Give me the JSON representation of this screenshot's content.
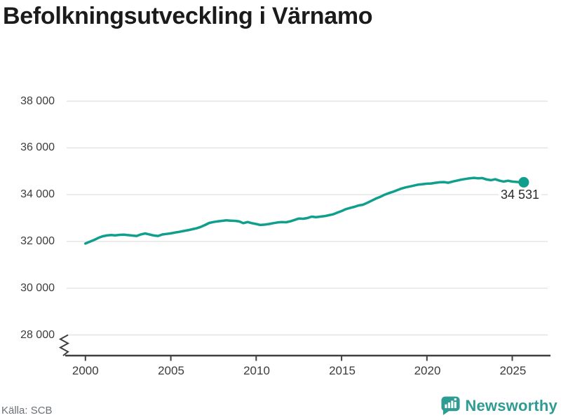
{
  "title": "Befolkningsutveckling i Värnamo",
  "source": "Källa: SCB",
  "brand": {
    "name": "Newsworthy",
    "color": "#2E9C93"
  },
  "chart_data": {
    "type": "line",
    "title": "Befolkningsutveckling i Värnamo",
    "xlabel": "",
    "ylabel": "",
    "ylim": [
      28000,
      38000
    ],
    "xlim": [
      2000,
      2025.67
    ],
    "axis_break": true,
    "grid": "horizontal",
    "line_color": "#109E8D",
    "grid_color": "#e3e3e3",
    "axis_color": "#3f3f3f",
    "end_label": "34 531",
    "end_value": 34531,
    "x_ticks": [
      2000,
      2005,
      2010,
      2015,
      2020,
      2025
    ],
    "y_ticks": [
      {
        "value": 38000,
        "label": "38 000"
      },
      {
        "value": 36000,
        "label": "36 000"
      },
      {
        "value": 34000,
        "label": "34 000"
      },
      {
        "value": 32000,
        "label": "32 000"
      },
      {
        "value": 30000,
        "label": "30 000"
      },
      {
        "value": 28000,
        "label": "28 000"
      }
    ],
    "series": [
      {
        "name": "Befolkning",
        "points": [
          [
            2000.0,
            31910
          ],
          [
            2000.25,
            31985
          ],
          [
            2000.5,
            32060
          ],
          [
            2000.75,
            32150
          ],
          [
            2001.0,
            32220
          ],
          [
            2001.25,
            32255
          ],
          [
            2001.5,
            32275
          ],
          [
            2001.75,
            32260
          ],
          [
            2002.0,
            32280
          ],
          [
            2002.25,
            32290
          ],
          [
            2002.5,
            32270
          ],
          [
            2002.75,
            32250
          ],
          [
            2003.0,
            32235
          ],
          [
            2003.25,
            32300
          ],
          [
            2003.5,
            32340
          ],
          [
            2003.75,
            32300
          ],
          [
            2004.0,
            32255
          ],
          [
            2004.25,
            32235
          ],
          [
            2004.5,
            32295
          ],
          [
            2004.75,
            32320
          ],
          [
            2005.0,
            32345
          ],
          [
            2005.25,
            32380
          ],
          [
            2005.5,
            32410
          ],
          [
            2005.75,
            32445
          ],
          [
            2006.0,
            32480
          ],
          [
            2006.25,
            32520
          ],
          [
            2006.5,
            32560
          ],
          [
            2006.75,
            32620
          ],
          [
            2007.0,
            32700
          ],
          [
            2007.25,
            32790
          ],
          [
            2007.5,
            32830
          ],
          [
            2007.75,
            32860
          ],
          [
            2008.0,
            32880
          ],
          [
            2008.25,
            32900
          ],
          [
            2008.5,
            32890
          ],
          [
            2008.75,
            32880
          ],
          [
            2009.0,
            32860
          ],
          [
            2009.25,
            32780
          ],
          [
            2009.5,
            32830
          ],
          [
            2009.75,
            32780
          ],
          [
            2010.0,
            32745
          ],
          [
            2010.25,
            32705
          ],
          [
            2010.5,
            32720
          ],
          [
            2010.75,
            32745
          ],
          [
            2011.0,
            32780
          ],
          [
            2011.25,
            32810
          ],
          [
            2011.5,
            32830
          ],
          [
            2011.75,
            32820
          ],
          [
            2012.0,
            32860
          ],
          [
            2012.25,
            32920
          ],
          [
            2012.5,
            32980
          ],
          [
            2012.75,
            32970
          ],
          [
            2013.0,
            33000
          ],
          [
            2013.25,
            33060
          ],
          [
            2013.5,
            33040
          ],
          [
            2013.75,
            33060
          ],
          [
            2014.0,
            33080
          ],
          [
            2014.25,
            33120
          ],
          [
            2014.5,
            33160
          ],
          [
            2014.75,
            33230
          ],
          [
            2015.0,
            33300
          ],
          [
            2015.25,
            33380
          ],
          [
            2015.5,
            33430
          ],
          [
            2015.75,
            33480
          ],
          [
            2016.0,
            33540
          ],
          [
            2016.25,
            33570
          ],
          [
            2016.5,
            33650
          ],
          [
            2016.75,
            33740
          ],
          [
            2017.0,
            33830
          ],
          [
            2017.25,
            33900
          ],
          [
            2017.5,
            33990
          ],
          [
            2017.75,
            34060
          ],
          [
            2018.0,
            34120
          ],
          [
            2018.25,
            34190
          ],
          [
            2018.5,
            34260
          ],
          [
            2018.75,
            34310
          ],
          [
            2019.0,
            34350
          ],
          [
            2019.25,
            34390
          ],
          [
            2019.5,
            34430
          ],
          [
            2019.75,
            34450
          ],
          [
            2020.0,
            34470
          ],
          [
            2020.25,
            34480
          ],
          [
            2020.5,
            34510
          ],
          [
            2020.75,
            34530
          ],
          [
            2021.0,
            34540
          ],
          [
            2021.25,
            34510
          ],
          [
            2021.5,
            34560
          ],
          [
            2021.75,
            34600
          ],
          [
            2022.0,
            34640
          ],
          [
            2022.25,
            34670
          ],
          [
            2022.5,
            34700
          ],
          [
            2022.75,
            34720
          ],
          [
            2023.0,
            34700
          ],
          [
            2023.25,
            34710
          ],
          [
            2023.5,
            34650
          ],
          [
            2023.75,
            34620
          ],
          [
            2024.0,
            34660
          ],
          [
            2024.25,
            34600
          ],
          [
            2024.5,
            34560
          ],
          [
            2024.75,
            34595
          ],
          [
            2025.0,
            34560
          ],
          [
            2025.25,
            34545
          ],
          [
            2025.5,
            34531
          ],
          [
            2025.67,
            34531
          ]
        ]
      }
    ]
  }
}
